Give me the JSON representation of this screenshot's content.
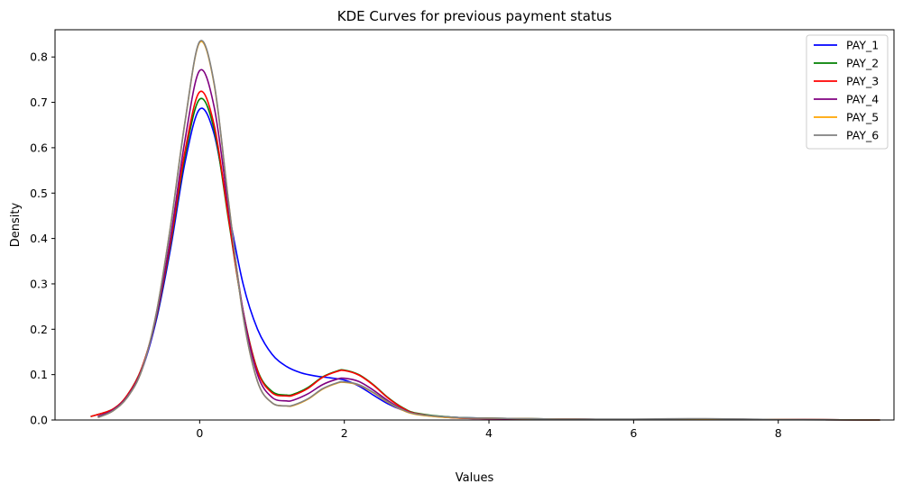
{
  "chart_data": {
    "type": "line",
    "title": "KDE Curves for previous payment status",
    "xlabel": "Values",
    "ylabel": "Density",
    "xlim": [
      -2,
      9.6
    ],
    "ylim": [
      0,
      0.86
    ],
    "xticks": [
      0,
      2,
      4,
      6,
      8
    ],
    "yticks": [
      0.0,
      0.1,
      0.2,
      0.3,
      0.4,
      0.5,
      0.6,
      0.7,
      0.8
    ],
    "ytick_labels": [
      "0.0",
      "0.1",
      "0.2",
      "0.3",
      "0.4",
      "0.5",
      "0.6",
      "0.7",
      "0.8"
    ],
    "grid": false,
    "legend_position": "top-right",
    "series": [
      {
        "name": "PAY_1",
        "color": "#0000ff",
        "x": [
          -1.4,
          -1.2,
          -1.0,
          -0.8,
          -0.6,
          -0.4,
          -0.2,
          0.0,
          0.2,
          0.4,
          0.6,
          0.8,
          1.0,
          1.2,
          1.4,
          1.6,
          1.8,
          2.0,
          2.2,
          2.4,
          2.6,
          2.8,
          3.0,
          3.5,
          4.0,
          5.0,
          6.0,
          7.0,
          8.0,
          9.4
        ],
        "y": [
          0.008,
          0.022,
          0.05,
          0.11,
          0.22,
          0.38,
          0.57,
          0.685,
          0.63,
          0.46,
          0.3,
          0.2,
          0.145,
          0.118,
          0.104,
          0.097,
          0.093,
          0.088,
          0.075,
          0.055,
          0.036,
          0.022,
          0.013,
          0.006,
          0.004,
          0.002,
          0.001,
          0.002,
          0.001,
          0.0
        ]
      },
      {
        "name": "PAY_2",
        "color": "#008000",
        "x": [
          -1.5,
          -1.2,
          -1.0,
          -0.8,
          -0.6,
          -0.4,
          -0.2,
          0.0,
          0.2,
          0.4,
          0.6,
          0.8,
          1.0,
          1.2,
          1.3,
          1.5,
          1.7,
          1.9,
          2.0,
          2.2,
          2.4,
          2.6,
          2.8,
          3.0,
          3.5,
          4.0,
          5.0,
          6.0,
          7.0,
          8.0,
          9.4
        ],
        "y": [
          0.008,
          0.024,
          0.055,
          0.115,
          0.225,
          0.39,
          0.585,
          0.707,
          0.64,
          0.44,
          0.24,
          0.11,
          0.063,
          0.055,
          0.057,
          0.072,
          0.095,
          0.108,
          0.11,
          0.1,
          0.078,
          0.05,
          0.028,
          0.015,
          0.006,
          0.004,
          0.002,
          0.001,
          0.001,
          0.001,
          0.0
        ]
      },
      {
        "name": "PAY_3",
        "color": "#ff0000",
        "x": [
          -1.5,
          -1.2,
          -1.0,
          -0.8,
          -0.6,
          -0.4,
          -0.2,
          0.0,
          0.2,
          0.4,
          0.6,
          0.8,
          1.0,
          1.2,
          1.3,
          1.5,
          1.7,
          1.9,
          2.0,
          2.2,
          2.4,
          2.6,
          2.8,
          3.0,
          3.5,
          4.0,
          5.0,
          6.0,
          7.0,
          8.0,
          9.4
        ],
        "y": [
          0.008,
          0.024,
          0.055,
          0.115,
          0.228,
          0.395,
          0.595,
          0.723,
          0.65,
          0.445,
          0.24,
          0.108,
          0.06,
          0.053,
          0.055,
          0.07,
          0.094,
          0.107,
          0.109,
          0.099,
          0.077,
          0.049,
          0.027,
          0.014,
          0.005,
          0.003,
          0.002,
          0.001,
          0.001,
          0.001,
          0.0
        ]
      },
      {
        "name": "PAY_4",
        "color": "#800080",
        "x": [
          -1.4,
          -1.2,
          -1.0,
          -0.8,
          -0.6,
          -0.4,
          -0.2,
          0.0,
          0.2,
          0.4,
          0.6,
          0.8,
          1.0,
          1.2,
          1.3,
          1.5,
          1.7,
          1.9,
          2.0,
          2.2,
          2.4,
          2.6,
          2.8,
          3.0,
          3.5,
          4.0,
          5.0,
          6.0,
          7.0,
          8.0,
          9.4
        ],
        "y": [
          0.008,
          0.022,
          0.052,
          0.112,
          0.228,
          0.405,
          0.62,
          0.77,
          0.69,
          0.465,
          0.24,
          0.1,
          0.05,
          0.042,
          0.044,
          0.058,
          0.078,
          0.09,
          0.092,
          0.085,
          0.066,
          0.043,
          0.024,
          0.013,
          0.005,
          0.003,
          0.002,
          0.001,
          0.001,
          0.001,
          0.0
        ]
      },
      {
        "name": "PAY_5",
        "color": "#ffa500",
        "x": [
          -1.4,
          -1.2,
          -1.0,
          -0.8,
          -0.6,
          -0.4,
          -0.2,
          0.0,
          0.2,
          0.4,
          0.6,
          0.8,
          1.0,
          1.2,
          1.3,
          1.5,
          1.7,
          1.9,
          2.0,
          2.2,
          2.4,
          2.6,
          2.8,
          3.0,
          3.5,
          4.0,
          5.0,
          6.0,
          7.0,
          8.0,
          9.4
        ],
        "y": [
          0.006,
          0.02,
          0.05,
          0.11,
          0.235,
          0.43,
          0.66,
          0.832,
          0.74,
          0.48,
          0.23,
          0.085,
          0.038,
          0.031,
          0.032,
          0.046,
          0.068,
          0.081,
          0.083,
          0.077,
          0.06,
          0.039,
          0.022,
          0.012,
          0.005,
          0.004,
          0.002,
          0.001,
          0.002,
          0.001,
          0.0
        ]
      },
      {
        "name": "PAY_6",
        "color": "#808080",
        "x": [
          -1.4,
          -1.2,
          -1.0,
          -0.8,
          -0.6,
          -0.4,
          -0.2,
          0.0,
          0.2,
          0.4,
          0.6,
          0.8,
          1.0,
          1.2,
          1.3,
          1.5,
          1.7,
          1.9,
          2.0,
          2.2,
          2.4,
          2.6,
          2.8,
          3.0,
          3.5,
          4.0,
          5.0,
          6.0,
          7.0,
          8.0,
          9.4
        ],
        "y": [
          0.006,
          0.02,
          0.05,
          0.11,
          0.235,
          0.43,
          0.66,
          0.834,
          0.742,
          0.48,
          0.23,
          0.085,
          0.038,
          0.031,
          0.033,
          0.047,
          0.069,
          0.082,
          0.084,
          0.078,
          0.061,
          0.04,
          0.023,
          0.013,
          0.006,
          0.004,
          0.002,
          0.002,
          0.003,
          0.001,
          0.0
        ]
      }
    ]
  }
}
